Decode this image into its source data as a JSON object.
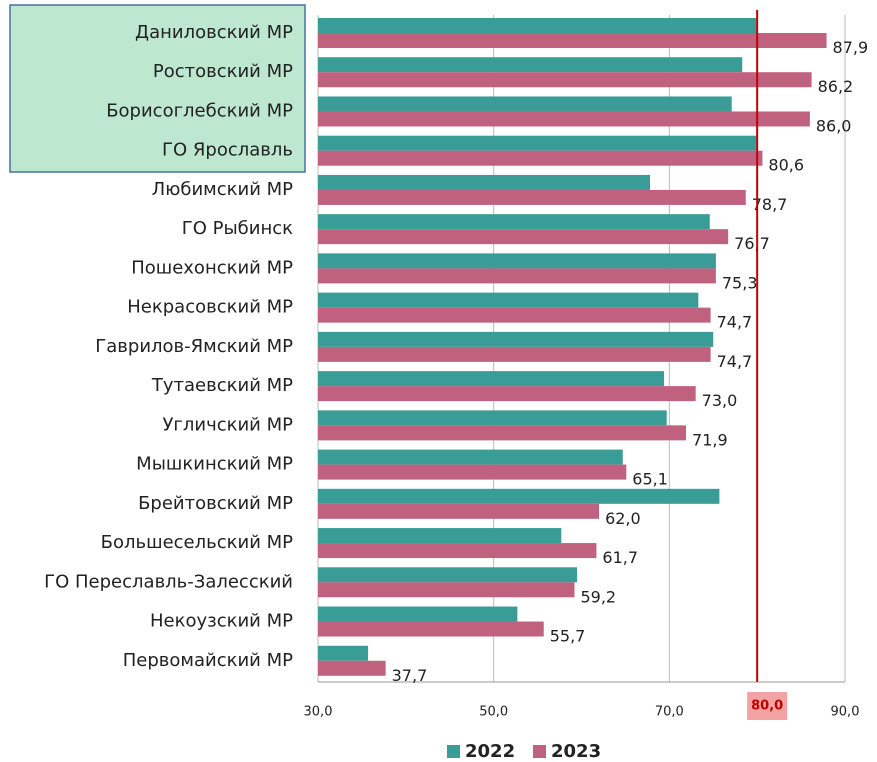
{
  "chart_data": {
    "type": "bar",
    "orientation": "horizontal",
    "categories": [
      "Даниловский МР",
      "Ростовский МР",
      "Борисоглебский МР",
      "ГО Ярославль",
      "Любимский МР",
      "ГО Рыбинск",
      "Пошехонский МР",
      "Некрасовский МР",
      "Гаврилов-Ямский МР",
      "Тутаевский МР",
      "Угличский МР",
      "Мышкинский МР",
      "Брейтовский МР",
      "Большесельский МР",
      "ГО Переславль-Залесский",
      "Некоузский МР",
      "Первомайский МР"
    ],
    "series": [
      {
        "name": "2022",
        "color": "#3a9c97",
        "values": [
          79.9,
          78.3,
          77.1,
          79.9,
          67.8,
          74.6,
          75.3,
          73.3,
          75.0,
          69.4,
          69.7,
          64.7,
          75.7,
          57.7,
          59.5,
          52.7,
          35.7
        ]
      },
      {
        "name": "2023",
        "color": "#c0627f",
        "values": [
          87.9,
          86.2,
          86.0,
          80.6,
          78.7,
          76.7,
          75.3,
          74.7,
          74.7,
          73.0,
          71.9,
          65.1,
          62.0,
          61.7,
          59.2,
          55.7,
          37.7
        ],
        "value_labels": [
          "87,9",
          "86,2",
          "86,0",
          "80,6",
          "78,7",
          "76,7",
          "75,3",
          "74,7",
          "74,7",
          "73,0",
          "71,9",
          "65,1",
          "62,0",
          "61,7",
          "59,2",
          "55,7",
          "37,7"
        ]
      }
    ],
    "xlim": [
      30,
      90
    ],
    "xticks": [
      {
        "value": 30,
        "label": "30,0"
      },
      {
        "value": 50,
        "label": "50,0"
      },
      {
        "value": 70,
        "label": "70,0"
      },
      {
        "value": 90,
        "label": "90,0"
      }
    ],
    "grid": true,
    "reference_line": {
      "value": 80,
      "label": "80,0",
      "color": "#c00000"
    },
    "legend": "bottom"
  }
}
